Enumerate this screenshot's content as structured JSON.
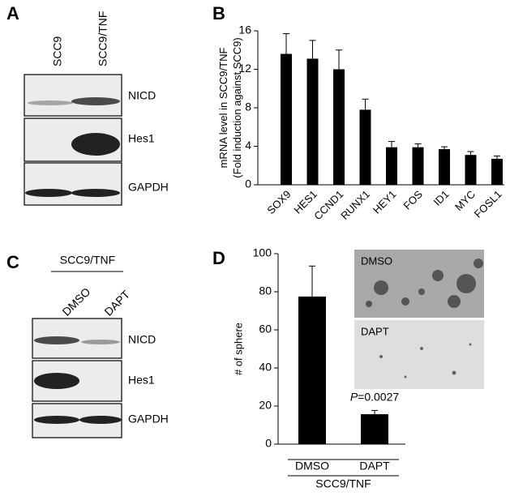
{
  "panel_a": {
    "letter": "A",
    "lanes": [
      "SCC9",
      "SCC9/TNF"
    ],
    "blots": [
      "NICD",
      "Hes1",
      "GAPDH"
    ]
  },
  "panel_c": {
    "letter": "C",
    "header": "SCC9/TNF",
    "lanes": [
      "DMSO",
      "DAPT"
    ],
    "blots": [
      "NICD",
      "Hes1",
      "GAPDH"
    ]
  },
  "chart_data": [
    {
      "type": "bar",
      "letter": "B",
      "y_label": [
        "mRNA level in SCC9/TNF",
        "(Fold induction against SCC9)"
      ],
      "categories": [
        "SOX9",
        "HES1",
        "CCND1",
        "RUNX1",
        "HEY1",
        "FOS",
        "ID1",
        "MYC",
        "FOSL1"
      ],
      "values": [
        13.6,
        13.1,
        12.0,
        7.8,
        3.9,
        3.9,
        3.7,
        3.1,
        2.7
      ],
      "errors": [
        2.1,
        1.9,
        2.0,
        1.1,
        0.6,
        0.35,
        0.25,
        0.35,
        0.3
      ],
      "color": "#000000",
      "ylim": [
        0,
        16
      ],
      "yticks": [
        0,
        4,
        8,
        12,
        16
      ]
    },
    {
      "type": "bar",
      "letter": "D",
      "y_label": [
        "# of sphere"
      ],
      "categories": [
        "DMSO",
        "DAPT"
      ],
      "values": [
        77.5,
        15.7
      ],
      "errors": [
        16,
        2
      ],
      "color": "#000000",
      "ylim": [
        0,
        100
      ],
      "yticks": [
        0,
        20,
        40,
        60,
        80,
        100
      ],
      "annotation": [
        "P",
        "=0.0027"
      ],
      "group_label": "SCC9/TNF",
      "insets": [
        "DMSO",
        "DAPT"
      ]
    }
  ]
}
